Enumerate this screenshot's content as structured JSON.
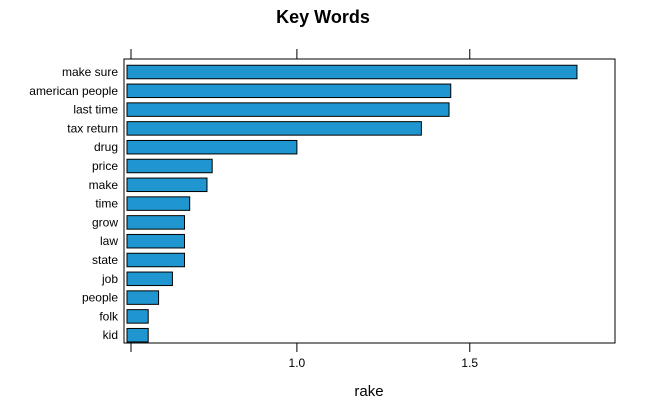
{
  "chart_data": {
    "type": "bar",
    "orientation": "horizontal",
    "title": "Key Words",
    "xlabel": "rake",
    "ylabel": "",
    "xlim": [
      0.5,
      1.92
    ],
    "xticks": [
      0.5,
      1.0,
      1.5
    ],
    "xtick_labels": [
      "",
      "1.0",
      "1.5"
    ],
    "categories": [
      "make sure",
      "american people",
      "last time",
      "tax return",
      "drug",
      "price",
      "make",
      "time",
      "grow",
      "law",
      "state",
      "job",
      "people",
      "folk",
      "kid"
    ],
    "values": [
      1.81,
      1.445,
      1.44,
      1.36,
      1.0,
      0.755,
      0.74,
      0.69,
      0.675,
      0.675,
      0.675,
      0.64,
      0.6,
      0.57,
      0.57
    ],
    "bar_color": "#1f96d0",
    "grid": false
  }
}
